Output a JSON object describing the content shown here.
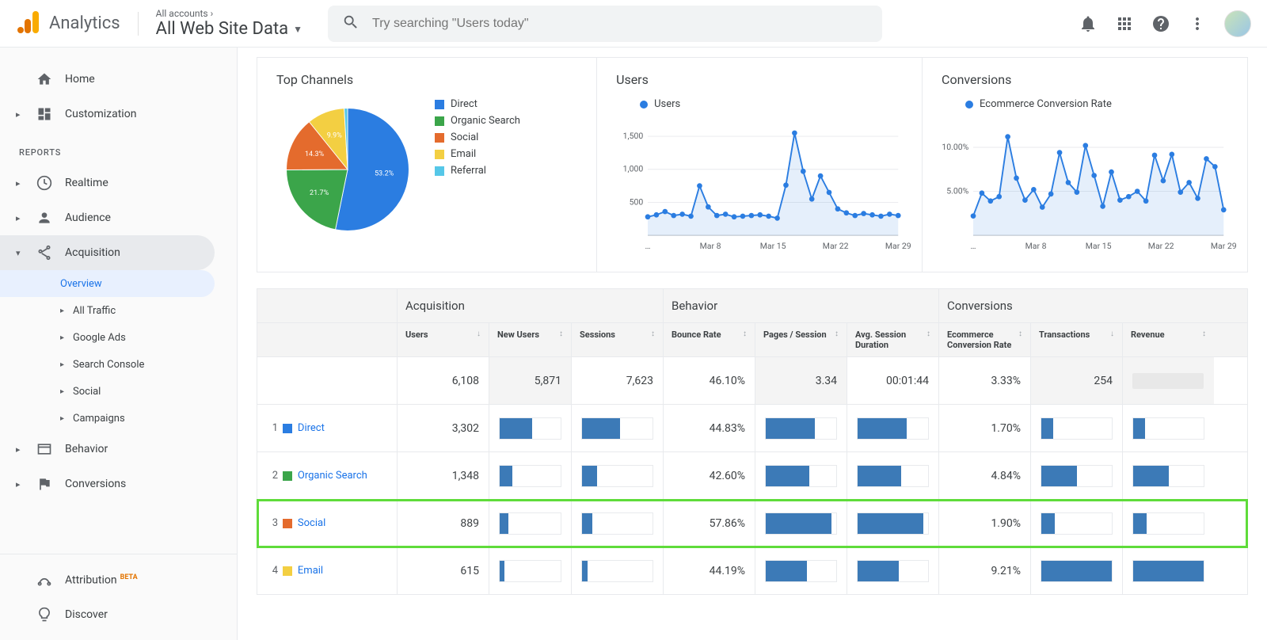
{
  "product_name": "Analytics",
  "account_breadcrumb": "All accounts",
  "view_name": "All Web Site Data",
  "search_placeholder": "Try searching \"Users today\"",
  "colors": {
    "brand_orange": "#f9ab00",
    "accent_blue": "#1a73e8",
    "bar_fill": "#3c7ab7",
    "grid": "#e8eaed",
    "text": "#3c4043",
    "highlight_border": "#5fdc3a"
  },
  "sidebar": {
    "home": "Home",
    "customization": "Customization",
    "reports_label": "REPORTS",
    "realtime": "Realtime",
    "audience": "Audience",
    "acquisition": "Acquisition",
    "sub": {
      "overview": "Overview",
      "all_traffic": "All Traffic",
      "google_ads": "Google Ads",
      "search_console": "Search Console",
      "social": "Social",
      "campaigns": "Campaigns"
    },
    "behavior": "Behavior",
    "conversions": "Conversions",
    "attribution": "Attribution",
    "beta": "BETA",
    "discover": "Discover"
  },
  "cards": {
    "top_channels": {
      "title": "Top Channels",
      "type": "pie",
      "slices": [
        {
          "label": "Direct",
          "pct": 53.2,
          "color": "#2b7de1"
        },
        {
          "label": "Organic Search",
          "pct": 21.7,
          "color": "#3ba54a"
        },
        {
          "label": "Social",
          "pct": 14.3,
          "color": "#e46b2d"
        },
        {
          "label": "Email",
          "pct": 9.9,
          "color": "#f3cf42"
        },
        {
          "label": "Referral",
          "pct": 0.9,
          "color": "#55c7e8"
        }
      ],
      "label_fontsize": 10
    },
    "users": {
      "title": "Users",
      "legend": "Users",
      "type": "line",
      "color": "#2b7de1",
      "y_ticks": [
        500,
        1000,
        1500
      ],
      "ylim": [
        0,
        1600
      ],
      "x_labels": [
        "…",
        "Mar 8",
        "Mar 15",
        "Mar 22",
        "Mar 29"
      ],
      "values": [
        280,
        310,
        360,
        300,
        320,
        290,
        750,
        430,
        300,
        320,
        280,
        290,
        300,
        310,
        290,
        260,
        760,
        1550,
        970,
        550,
        900,
        650,
        400,
        340,
        300,
        330,
        310,
        290,
        320,
        300
      ]
    },
    "conversions": {
      "title": "Conversions",
      "legend": "Ecommerce Conversion Rate",
      "type": "line",
      "color": "#2b7de1",
      "y_ticks": [
        5.0,
        10.0
      ],
      "y_suffix": "%",
      "ylim": [
        0,
        12
      ],
      "x_labels": [
        "…",
        "Mar 8",
        "Mar 15",
        "Mar 22",
        "Mar 29"
      ],
      "values": [
        2.2,
        4.8,
        3.9,
        4.4,
        11.2,
        6.5,
        4.0,
        5.2,
        3.2,
        4.7,
        9.4,
        6.0,
        4.9,
        10.2,
        6.8,
        3.3,
        7.2,
        4.0,
        4.4,
        5.0,
        3.9,
        9.1,
        6.2,
        9.2,
        4.9,
        6.0,
        4.2,
        8.7,
        7.8,
        2.9
      ]
    }
  },
  "table": {
    "groups": {
      "acquisition": "Acquisition",
      "behavior": "Behavior",
      "conversions": "Conversions"
    },
    "columns": {
      "users": "Users",
      "new_users": "New Users",
      "sessions": "Sessions",
      "bounce": "Bounce Rate",
      "pps": "Pages / Session",
      "duration": "Avg. Session Duration",
      "ecr": "Ecommerce Conversion Rate",
      "transactions": "Transactions",
      "revenue": "Revenue"
    },
    "totals": {
      "users": "6,108",
      "new_users": "5,871",
      "sessions": "7,623",
      "bounce": "46.10%",
      "pps": "3.34",
      "duration": "00:01:44",
      "ecr": "3.33%",
      "transactions": "254"
    },
    "max_new_users": 5871,
    "rows": [
      {
        "n": "1",
        "channel": "Direct",
        "color": "#2b7de1",
        "users": "3,302",
        "new_users": 3138,
        "bounce": "44.83%",
        "pps_bar": 0.7,
        "ecr": "1.70%",
        "trans_bar": 0.17,
        "highlight": false
      },
      {
        "n": "2",
        "channel": "Organic Search",
        "color": "#3ba54a",
        "users": "1,348",
        "new_users": 1222,
        "bounce": "42.60%",
        "pps_bar": 0.62,
        "ecr": "4.84%",
        "trans_bar": 0.5,
        "highlight": false
      },
      {
        "n": "3",
        "channel": "Social",
        "color": "#e46b2d",
        "users": "889",
        "new_users": 869,
        "bounce": "57.86%",
        "pps_bar": 0.93,
        "ecr": "1.90%",
        "trans_bar": 0.19,
        "highlight": true
      },
      {
        "n": "4",
        "channel": "Email",
        "color": "#f3cf42",
        "users": "615",
        "new_users": 485,
        "bounce": "44.19%",
        "pps_bar": 0.58,
        "ecr": "9.21%",
        "trans_bar": 1.0,
        "highlight": false
      }
    ]
  }
}
